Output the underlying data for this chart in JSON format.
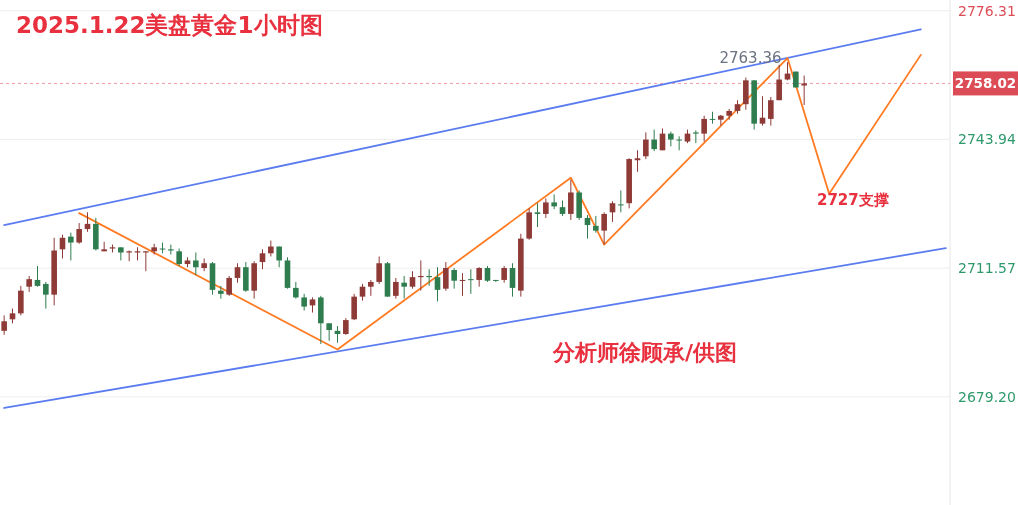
{
  "chart_data": {
    "type": "candlestick",
    "title": "2025.1.22美盘黄金1小时图",
    "categories": [
      null,
      null,
      null,
      null,
      null,
      null,
      null,
      null,
      null,
      null,
      null,
      null,
      null,
      null,
      null,
      null,
      null,
      null,
      null,
      null,
      null,
      null,
      null,
      null,
      null,
      null,
      null,
      null,
      null,
      null,
      null,
      null,
      null,
      null,
      null,
      null,
      null,
      null,
      null,
      null,
      null,
      null,
      null,
      null,
      null,
      null,
      null,
      null,
      null,
      null,
      null,
      null,
      null,
      null,
      null,
      null,
      null,
      null,
      null,
      null,
      null,
      null,
      null,
      null,
      null,
      null,
      null,
      null,
      null,
      null,
      null,
      null,
      null,
      null,
      null,
      null,
      null,
      null,
      null,
      null,
      null,
      null,
      null,
      null,
      null,
      null,
      null,
      null,
      null,
      null,
      null,
      null,
      null,
      null,
      null,
      null,
      null,
      null,
      null,
      null,
      null,
      null,
      null,
      null,
      null,
      null,
      null,
      null,
      null,
      null,
      null,
      null,
      null,
      null
    ],
    "ohlc": [
      [
        2695.8,
        2699.7,
        2694.8,
        2698.2
      ],
      [
        2698.7,
        2701.4,
        2697.7,
        2700.2
      ],
      [
        2700.2,
        2707.1,
        2699.7,
        2705.9
      ],
      [
        2706.9,
        2709.6,
        2705.6,
        2708.8
      ],
      [
        2708.6,
        2712.1,
        2706.9,
        2707.1
      ],
      [
        2707.6,
        2708.1,
        2701.4,
        2704.9
      ],
      [
        2704.9,
        2719.2,
        2702.2,
        2716.0
      ],
      [
        2716.3,
        2720.0,
        2714.0,
        2719.2
      ],
      [
        2719.5,
        2720.5,
        2713.5,
        2718.0
      ],
      [
        2718.0,
        2722.9,
        2717.7,
        2721.4
      ],
      [
        2721.4,
        2725.6,
        2720.7,
        2722.7
      ],
      [
        2722.7,
        2724.2,
        2716.0,
        2716.3
      ],
      [
        2715.8,
        2718.2,
        2715.8,
        2716.3
      ],
      [
        2716.5,
        2717.5,
        2715.5,
        2716.8
      ],
      [
        2716.8,
        2716.8,
        2713.5,
        2715.5
      ],
      [
        2715.5,
        2716.0,
        2713.3,
        2715.8
      ],
      [
        2715.5,
        2716.8,
        2713.5,
        2715.8
      ],
      [
        2715.5,
        2715.8,
        2710.8,
        2715.8
      ],
      [
        2715.8,
        2717.7,
        2715.0,
        2716.8
      ],
      [
        2716.5,
        2718.0,
        2715.3,
        2716.3
      ],
      [
        2716.3,
        2717.5,
        2715.0,
        2716.0
      ],
      [
        2715.8,
        2716.5,
        2712.1,
        2712.6
      ],
      [
        2712.6,
        2714.3,
        2711.8,
        2713.5
      ],
      [
        2713.5,
        2715.5,
        2709.8,
        2711.8
      ],
      [
        2711.6,
        2714.0,
        2710.8,
        2712.8
      ],
      [
        2712.8,
        2713.1,
        2704.9,
        2706.1
      ],
      [
        2705.9,
        2707.1,
        2703.9,
        2705.1
      ],
      [
        2704.9,
        2709.6,
        2704.6,
        2709.1
      ],
      [
        2709.1,
        2712.8,
        2707.9,
        2711.8
      ],
      [
        2711.8,
        2713.1,
        2705.6,
        2705.9
      ],
      [
        2705.9,
        2713.3,
        2703.9,
        2712.8
      ],
      [
        2713.1,
        2716.3,
        2711.3,
        2715.3
      ],
      [
        2715.3,
        2718.5,
        2714.5,
        2717.0
      ],
      [
        2717.0,
        2717.0,
        2711.8,
        2713.5
      ],
      [
        2713.5,
        2714.3,
        2706.4,
        2706.6
      ],
      [
        2706.6,
        2708.1,
        2703.9,
        2704.2
      ],
      [
        2704.2,
        2705.1,
        2700.9,
        2701.9
      ],
      [
        2702.2,
        2704.2,
        2700.4,
        2703.7
      ],
      [
        2704.2,
        2704.6,
        2692.5,
        2697.7
      ],
      [
        2697.7,
        2697.7,
        2693.3,
        2696.0
      ],
      [
        2695.8,
        2697.0,
        2692.8,
        2695.0
      ],
      [
        2695.0,
        2699.0,
        2694.8,
        2698.5
      ],
      [
        2698.7,
        2705.1,
        2698.5,
        2704.4
      ],
      [
        2704.4,
        2707.6,
        2703.4,
        2706.9
      ],
      [
        2706.9,
        2708.6,
        2704.6,
        2708.1
      ],
      [
        2708.1,
        2714.5,
        2707.6,
        2712.8
      ],
      [
        2712.8,
        2713.1,
        2704.4,
        2704.4
      ],
      [
        2704.6,
        2709.1,
        2703.9,
        2708.1
      ],
      [
        2707.9,
        2709.6,
        2703.9,
        2706.9
      ],
      [
        2706.9,
        2710.8,
        2706.4,
        2709.3
      ],
      [
        2709.3,
        2713.5,
        2705.9,
        2709.6
      ],
      [
        2709.6,
        2711.3,
        2707.1,
        2709.3
      ],
      [
        2709.3,
        2711.8,
        2703.2,
        2706.1
      ],
      [
        2706.4,
        2713.1,
        2705.9,
        2711.6
      ],
      [
        2711.1,
        2711.6,
        2706.4,
        2708.4
      ],
      [
        2708.4,
        2710.3,
        2704.6,
        2708.6
      ],
      [
        2708.8,
        2711.3,
        2705.1,
        2708.6
      ],
      [
        2708.6,
        2711.8,
        2706.9,
        2711.6
      ],
      [
        2711.6,
        2712.1,
        2708.1,
        2708.4
      ],
      [
        2708.6,
        2708.6,
        2708.1,
        2708.4
      ],
      [
        2708.6,
        2712.1,
        2707.9,
        2711.6
      ],
      [
        2711.6,
        2712.8,
        2704.4,
        2706.6
      ],
      [
        2705.9,
        2720.2,
        2704.4,
        2719.0
      ],
      [
        2719.0,
        2726.6,
        2718.7,
        2725.6
      ],
      [
        2725.6,
        2727.9,
        2721.9,
        2725.2
      ],
      [
        2725.2,
        2729.1,
        2724.2,
        2728.1
      ],
      [
        2728.1,
        2730.1,
        2726.4,
        2727.1
      ],
      [
        2726.9,
        2728.6,
        2724.7,
        2725.2
      ],
      [
        2725.2,
        2733.8,
        2723.7,
        2730.6
      ],
      [
        2730.6,
        2731.1,
        2723.7,
        2724.2
      ],
      [
        2724.2,
        2724.9,
        2719.0,
        2722.4
      ],
      [
        2722.2,
        2724.7,
        2720.5,
        2721.0
      ],
      [
        2721.0,
        2725.6,
        2717.5,
        2725.2
      ],
      [
        2725.6,
        2728.4,
        2723.2,
        2727.9
      ],
      [
        2727.6,
        2731.1,
        2725.6,
        2727.4
      ],
      [
        2727.9,
        2739.2,
        2726.6,
        2739.0
      ],
      [
        2738.7,
        2741.2,
        2735.8,
        2739.2
      ],
      [
        2739.7,
        2745.7,
        2739.0,
        2743.9
      ],
      [
        2743.9,
        2746.4,
        2741.0,
        2741.5
      ],
      [
        2741.2,
        2746.7,
        2741.2,
        2745.4
      ],
      [
        2745.4,
        2745.9,
        2742.2,
        2743.9
      ],
      [
        2743.9,
        2744.7,
        2741.2,
        2743.7
      ],
      [
        2743.4,
        2746.4,
        2743.0,
        2745.4
      ],
      [
        2745.7,
        2746.2,
        2743.0,
        2745.4
      ],
      [
        2745.4,
        2749.9,
        2743.4,
        2749.1
      ],
      [
        2749.1,
        2750.9,
        2747.9,
        2748.9
      ],
      [
        2748.9,
        2750.1,
        2747.4,
        2749.9
      ],
      [
        2749.9,
        2751.6,
        2748.9,
        2751.1
      ],
      [
        2751.1,
        2753.8,
        2750.4,
        2752.8
      ],
      [
        2752.8,
        2759.5,
        2751.4,
        2758.8
      ],
      [
        2758.8,
        2758.8,
        2746.4,
        2747.9
      ],
      [
        2747.9,
        2754.8,
        2747.4,
        2749.4
      ],
      [
        2749.1,
        2754.6,
        2747.4,
        2753.8
      ],
      [
        2753.8,
        2762.7,
        2753.8,
        2759.0
      ],
      [
        2759.0,
        2763.36,
        2758.8,
        2760.5
      ],
      [
        2761.0,
        2761.0,
        2757.0,
        2757.0
      ],
      [
        2757.5,
        2760.0,
        2752.6,
        2758.02
      ],
      null,
      null,
      null,
      null,
      null,
      null,
      null,
      null,
      null,
      null,
      null,
      null,
      null,
      null,
      null,
      null,
      null
    ],
    "colors": [
      "#8e3a36",
      "#8e3a36",
      "#8e3a36",
      "#8e3a36",
      "#2f7d4e",
      "#2f7d4e",
      "#8e3a36",
      "#8e3a36",
      "#2f7d4e",
      "#8e3a36",
      "#8e3a36",
      "#2f7d4e",
      "#8e3a36",
      "#8e3a36",
      "#2f7d4e",
      "#8e3a36",
      "#8e3a36",
      "#8e3a36",
      "#8e3a36",
      "#2f7d4e",
      "#2f7d4e",
      "#2f7d4e",
      "#8e3a36",
      "#2f7d4e",
      "#8e3a36",
      "#2f7d4e",
      "#2f7d4e",
      "#8e3a36",
      "#8e3a36",
      "#2f7d4e",
      "#8e3a36",
      "#8e3a36",
      "#8e3a36",
      "#2f7d4e",
      "#2f7d4e",
      "#2f7d4e",
      "#2f7d4e",
      "#8e3a36",
      "#2f7d4e",
      "#2f7d4e",
      "#2f7d4e",
      "#8e3a36",
      "#8e3a36",
      "#8e3a36",
      "#8e3a36",
      "#8e3a36",
      "#2f7d4e",
      "#8e3a36",
      "#2f7d4e",
      "#8e3a36",
      "#8e3a36",
      "#2f7d4e",
      "#2f7d4e",
      "#8e3a36",
      "#2f7d4e",
      "#8e3a36",
      "#2f7d4e",
      "#8e3a36",
      "#2f7d4e",
      "#2f7d4e",
      "#8e3a36",
      "#2f7d4e",
      "#8e3a36",
      "#8e3a36",
      "#2f7d4e",
      "#8e3a36",
      "#2f7d4e",
      "#2f7d4e",
      "#8e3a36",
      "#2f7d4e",
      "#2f7d4e",
      "#2f7d4e",
      "#8e3a36",
      "#8e3a36",
      "#2f7d4e",
      "#8e3a36",
      "#8e3a36",
      "#8e3a36",
      "#2f7d4e",
      "#8e3a36",
      "#2f7d4e",
      "#2f7d4e",
      "#8e3a36",
      "#2f7d4e",
      "#8e3a36",
      "#2f7d4e",
      "#8e3a36",
      "#8e3a36",
      "#8e3a36",
      "#8e3a36",
      "#2f7d4e",
      "#8e3a36",
      "#8e3a36",
      "#8e3a36",
      "#8e3a36",
      "#2f7d4e",
      "#8e3a36",
      null,
      null,
      null,
      null,
      null,
      null,
      null,
      null,
      null,
      null,
      null,
      null,
      null,
      null,
      null,
      null,
      null
    ],
    "series": [
      {
        "type": "line",
        "color": "#5b7cf0",
        "values": [
          2722.4,
          null,
          null,
          null,
          null,
          null,
          null,
          null,
          null,
          null,
          null,
          null,
          null,
          null,
          null,
          null,
          null,
          null,
          null,
          null,
          null,
          null,
          null,
          null,
          null,
          null,
          null,
          null,
          null,
          null,
          null,
          null,
          null,
          null,
          null,
          null,
          null,
          null,
          null,
          null,
          null,
          null,
          null,
          null,
          null,
          null,
          null,
          null,
          null,
          null,
          null,
          null,
          null,
          null,
          null,
          null,
          null,
          null,
          null,
          null,
          null,
          null,
          null,
          null,
          null,
          null,
          null,
          null,
          null,
          null,
          null,
          null,
          null,
          null,
          null,
          null,
          null,
          null,
          null,
          null,
          null,
          null,
          null,
          null,
          null,
          null,
          null,
          null,
          null,
          null,
          null,
          null,
          null,
          null,
          null,
          null,
          null,
          null,
          null,
          null,
          null,
          null,
          null,
          null,
          null,
          null,
          null,
          null,
          null,
          null,
          2771.6,
          null,
          null,
          null
        ]
      },
      {
        "type": "line",
        "color": "#5b7cf0",
        "values": [
          2676.4,
          null,
          null,
          null,
          null,
          null,
          null,
          null,
          null,
          null,
          null,
          null,
          null,
          null,
          null,
          null,
          null,
          null,
          null,
          null,
          null,
          null,
          null,
          null,
          null,
          null,
          null,
          null,
          null,
          null,
          null,
          null,
          null,
          null,
          null,
          null,
          null,
          null,
          null,
          null,
          null,
          null,
          null,
          null,
          null,
          null,
          null,
          null,
          null,
          null,
          null,
          null,
          null,
          null,
          null,
          null,
          null,
          null,
          null,
          null,
          null,
          null,
          null,
          null,
          null,
          null,
          null,
          null,
          null,
          null,
          null,
          null,
          null,
          null,
          null,
          null,
          null,
          null,
          null,
          null,
          null,
          null,
          null,
          null,
          null,
          null,
          null,
          null,
          null,
          null,
          null,
          null,
          null,
          null,
          null,
          null,
          null,
          null,
          null,
          null,
          null,
          null,
          null,
          null,
          null,
          null,
          null,
          null,
          null,
          null,
          null,
          null,
          null,
          2716.6
        ]
      },
      {
        "type": "line",
        "color": "#ff7a21",
        "values": [
          null,
          null,
          null,
          null,
          null,
          null,
          null,
          null,
          null,
          2725.4,
          null,
          null,
          null,
          null,
          null,
          null,
          null,
          null,
          null,
          null,
          null,
          null,
          null,
          null,
          null,
          null,
          null,
          null,
          null,
          null,
          null,
          null,
          null,
          null,
          null,
          null,
          null,
          null,
          null,
          null,
          2691.1,
          null,
          null,
          null,
          null,
          null,
          null,
          null,
          null,
          null,
          null,
          null,
          null,
          null,
          null,
          null,
          null,
          null,
          null,
          null,
          null,
          null,
          null,
          null,
          null,
          null,
          null,
          null,
          2734.3,
          null,
          null,
          null,
          2717.5,
          null,
          null,
          null,
          null,
          null,
          null,
          null,
          null,
          null,
          null,
          null,
          null,
          null,
          null,
          null,
          null,
          null,
          null,
          null,
          null,
          null,
          2764.4,
          null,
          null,
          null,
          null,
          2730.3,
          null,
          null,
          null,
          null,
          null,
          null,
          null,
          null,
          null,
          null,
          2765.2,
          null,
          null,
          null
        ]
      }
    ],
    "ylim": [
      2652.0,
      2779.0
    ],
    "yticks": [
      {
        "value": 2679.2,
        "label": "2679.20"
      },
      {
        "value": 2711.57,
        "label": "2711.57"
      },
      {
        "value": 2743.94,
        "label": "2743.94"
      },
      {
        "value": 2776.31,
        "label": "2776.31"
      }
    ],
    "tick_labels": "y",
    "grid": "y",
    "marker": "none",
    "ref_lines": [
      {
        "axis": "y",
        "value": 2758.02,
        "label": "2758.02",
        "color": "#dc4c57",
        "line_style": "dotted"
      }
    ],
    "annotations": [
      {
        "text": "2763.36",
        "y": 2763.36
      },
      "2727支撑",
      "分析师徐顾承/供图"
    ]
  }
}
